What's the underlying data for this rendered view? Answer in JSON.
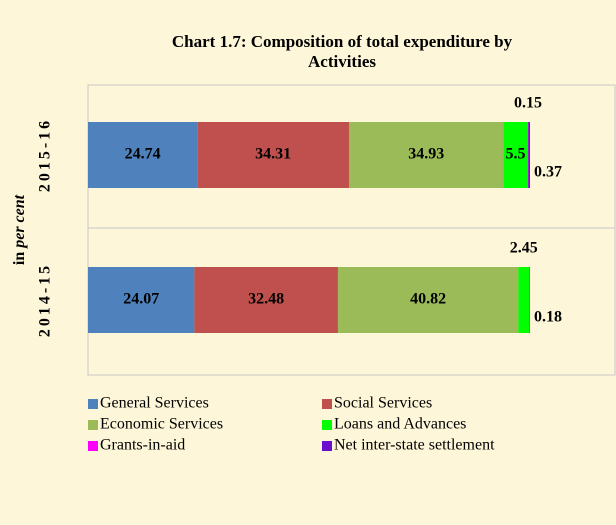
{
  "chart_data": {
    "type": "stacked_barh",
    "title": [
      "Chart 1.7: Composition of total expenditure by",
      "Activities"
    ],
    "ylabel": [
      "in ",
      "per cent"
    ],
    "categories": [
      "2015-16",
      "2014-15"
    ],
    "xlim": [
      0,
      100
    ],
    "series": [
      {
        "name": "General Services",
        "color": "#4f81bd",
        "values": [
          24.74,
          24.07
        ]
      },
      {
        "name": "Social Services",
        "color": "#c0504d",
        "values": [
          34.31,
          32.48
        ]
      },
      {
        "name": "Economic Services",
        "color": "#9bbb59",
        "values": [
          34.93,
          40.82
        ]
      },
      {
        "name": "Loans and Advances",
        "color": "#00ff00",
        "values": [
          5.5,
          2.45
        ]
      },
      {
        "name": "Grants-in-aid",
        "color": "#ff00ff",
        "values": [
          0.15,
          0.18
        ]
      },
      {
        "name": "Net inter-state settlement",
        "color": "#6a0dcc",
        "values": [
          0.37,
          null
        ]
      }
    ]
  }
}
